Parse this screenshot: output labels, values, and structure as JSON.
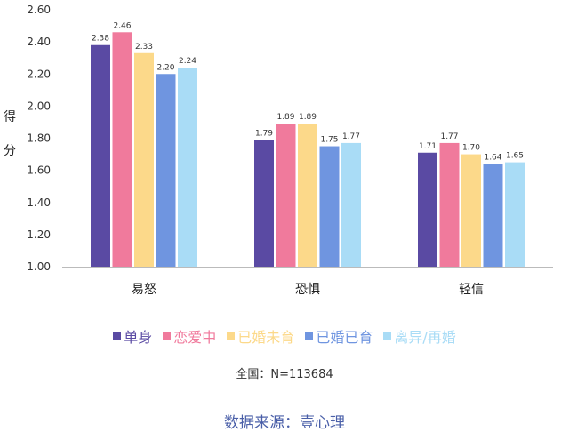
{
  "chart_data": {
    "type": "bar",
    "ylabel": "得分",
    "ylim": [
      1.0,
      2.6
    ],
    "yticks": [
      "1.00",
      "1.20",
      "1.40",
      "1.60",
      "1.80",
      "2.00",
      "2.20",
      "2.40",
      "2.60"
    ],
    "categories": [
      "易怒",
      "恐惧",
      "轻信"
    ],
    "series": [
      {
        "name": "单身",
        "color": "#5a4aa3",
        "values": [
          2.38,
          1.79,
          1.71
        ]
      },
      {
        "name": "恋爱中",
        "color": "#f07a9c",
        "values": [
          2.46,
          1.89,
          1.77
        ]
      },
      {
        "name": "已婚未育",
        "color": "#fcd98a",
        "values": [
          2.33,
          1.89,
          1.7
        ]
      },
      {
        "name": "已婚已育",
        "color": "#6f95e0",
        "values": [
          2.2,
          1.75,
          1.64
        ]
      },
      {
        "name": "离异/再婚",
        "color": "#a9dcf6",
        "values": [
          2.24,
          1.77,
          1.65
        ]
      }
    ],
    "grid": false,
    "legend_position": "bottom"
  },
  "note": "全国：N=113684",
  "source": "数据来源：壹心理"
}
